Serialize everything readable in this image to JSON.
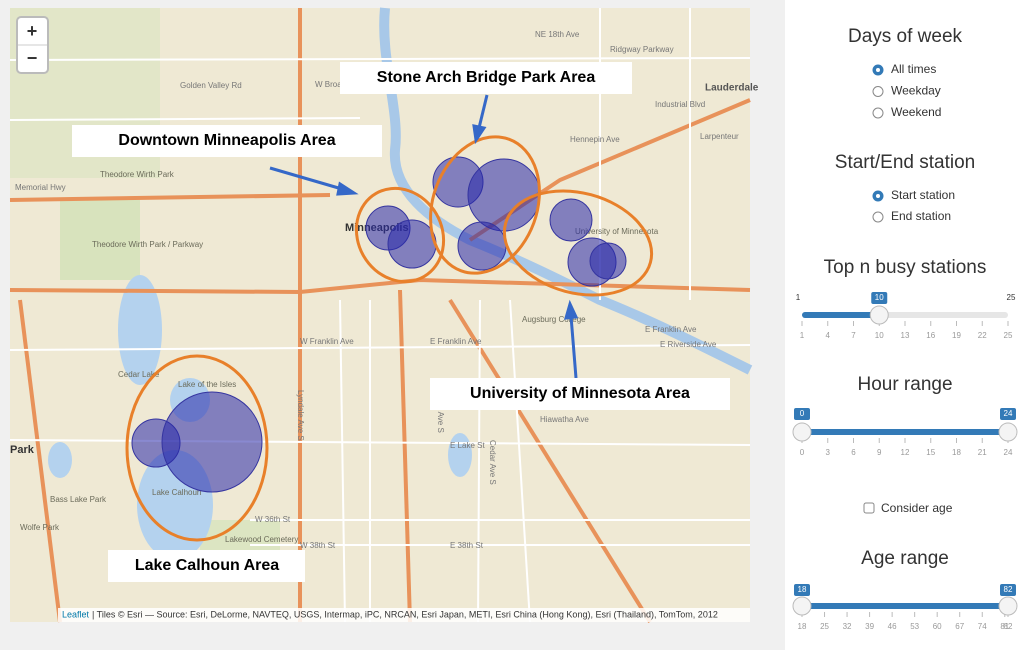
{
  "map": {
    "zoom": {
      "in": "+",
      "out": "−"
    },
    "annotations": [
      "Stone Arch Bridge Park Area",
      "Downtown Minneapolis Area",
      "University of Minnesota Area",
      "Lake Calhoun Area"
    ],
    "places": [
      "Golden Valley Rd",
      "Theodore Wirth Park",
      "Memorial Hwy",
      "Theodore Wirth Park / Parkway",
      "Minneapolis",
      "W Broadway",
      "Cedar Lake",
      "Lake of the Isles",
      "Lake Calhoun",
      "Bass Lake Park",
      "Wolfe Park",
      "Lakewood Cemetery",
      "E Lake St",
      "W 36th St",
      "W 38th St",
      "E 38th St",
      "E Franklin Ave",
      "W Franklin Ave",
      "Augsburg College",
      "University of Minnesota",
      "Hennepin Ave",
      "Lauderdale",
      "NE 18th Ave",
      "Ridgway Parkway",
      "Industrial Blvd",
      "Larpenteur",
      "E Franklin Ave",
      "Park",
      "Hiawatha Ave",
      "Lyndale Ave S",
      "Portland Ave S",
      "Cedar Ave S",
      "E Riverside Ave"
    ],
    "attribution": {
      "link": "Leaflet",
      "text": "| Tiles © Esri — Source: Esri, DeLorme, NAVTEQ, USGS, Intermap, iPC, NRCAN, Esri Japan, METI, Esri China (Hong Kong), Esri (Thailand), TomTom, 2012"
    }
  },
  "controls": {
    "days_of_week": {
      "title": "Days of week",
      "options": [
        "All times",
        "Weekday",
        "Weekend"
      ]
    },
    "start_end": {
      "title": "Start/End station",
      "options": [
        "Start station",
        "End station"
      ]
    },
    "top_n": {
      "title": "Top n busy stations",
      "min": 1,
      "max": 25,
      "value": 10,
      "ticks": [
        1,
        4,
        7,
        10,
        13,
        16,
        19,
        22,
        25
      ]
    },
    "hour_range": {
      "title": "Hour range",
      "values": [
        0,
        24
      ],
      "ticks": [
        0,
        3,
        6,
        9,
        12,
        15,
        18,
        21,
        24
      ]
    },
    "consider_age": {
      "label": "Consider age"
    },
    "age_range": {
      "title": "Age range",
      "values": [
        18,
        82
      ],
      "ticks": [
        18,
        25,
        32,
        39,
        46,
        53,
        60,
        67,
        74,
        81,
        82
      ]
    }
  }
}
